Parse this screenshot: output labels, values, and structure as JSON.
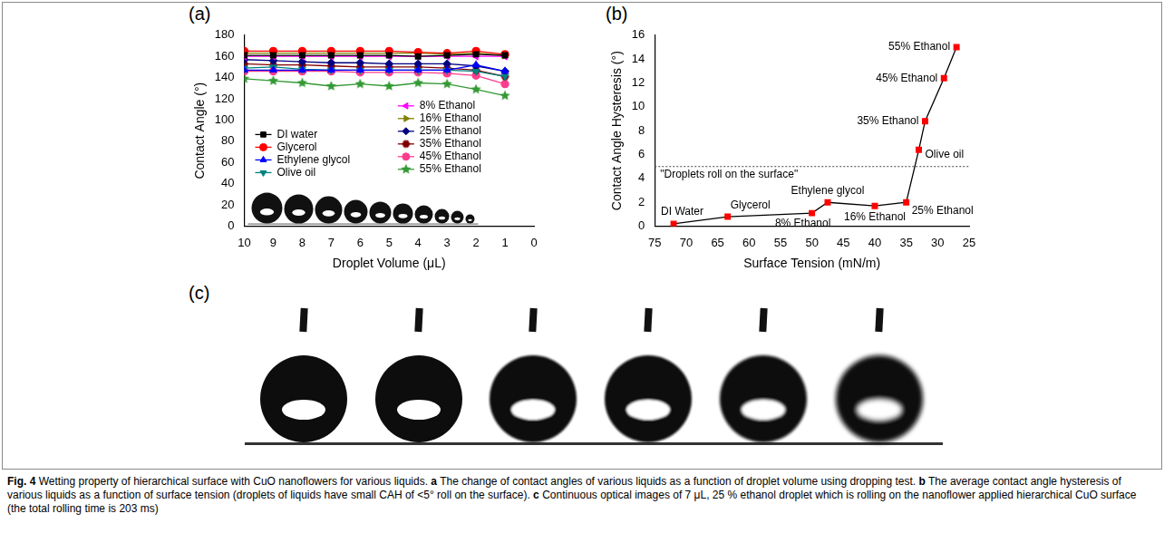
{
  "chart_data": [
    {
      "panel": "(a)",
      "type": "line",
      "x_label": "Droplet Volume (μL)",
      "y_label": "Contact Angle (°)",
      "x": [
        10,
        9,
        8,
        7,
        6,
        5,
        4,
        3,
        2,
        1
      ],
      "xlim": [
        10,
        0
      ],
      "xticks": [
        10,
        9,
        8,
        7,
        6,
        5,
        4,
        3,
        2,
        1,
        0
      ],
      "ylim": [
        0,
        180
      ],
      "yticks": [
        0,
        20,
        40,
        60,
        80,
        100,
        120,
        140,
        160,
        180
      ],
      "grid": false,
      "legend": "center",
      "series": [
        {
          "name": "DI water",
          "color": "#000000",
          "marker": "square",
          "values": [
            161,
            161,
            161,
            161,
            161,
            161,
            160,
            161,
            162,
            161
          ]
        },
        {
          "name": "Glycerol",
          "color": "#ff0000",
          "marker": "circle",
          "values": [
            165,
            165,
            165,
            165,
            165,
            165,
            164,
            163,
            165,
            162
          ]
        },
        {
          "name": "Ethylene glycol",
          "color": "#0000ff",
          "marker": "triangle",
          "values": [
            147,
            147,
            147,
            147,
            147,
            147,
            147,
            147,
            152,
            146
          ]
        },
        {
          "name": "Olive oil",
          "color": "#008080",
          "marker": "triangle_down",
          "values": [
            149,
            150,
            148,
            147,
            147,
            147,
            147,
            147,
            146,
            141
          ]
        },
        {
          "name": "8% Ethanol",
          "color": "#ff00ff",
          "marker": "triangle_left",
          "values": [
            160,
            160,
            160,
            160,
            160,
            160,
            160,
            160,
            160,
            160
          ]
        },
        {
          "name": "16% Ethanol",
          "color": "#808000",
          "marker": "triangle_right",
          "values": [
            163,
            163,
            163,
            163,
            163,
            163,
            163,
            162,
            163,
            161
          ]
        },
        {
          "name": "25% Ethanol",
          "color": "#000080",
          "marker": "diamond",
          "values": [
            157,
            156,
            155,
            154,
            154,
            153,
            153,
            153,
            151,
            146
          ]
        },
        {
          "name": "35% Ethanol",
          "color": "#800000",
          "marker": "hexagon",
          "values": [
            153,
            152,
            152,
            151,
            150,
            150,
            150,
            149,
            147,
            141
          ]
        },
        {
          "name": "45% Ethanol",
          "color": "#ff3c8c",
          "marker": "circle",
          "values": [
            146,
            146,
            146,
            146,
            145,
            145,
            145,
            144,
            142,
            134
          ]
        },
        {
          "name": "55% Ethanol",
          "color": "#339933",
          "marker": "star",
          "values": [
            139,
            137,
            135,
            132,
            134,
            132,
            135,
            134,
            129,
            123
          ]
        }
      ]
    },
    {
      "panel": "(b)",
      "type": "line",
      "x_label": "Surface Tension (mN/m)",
      "y_label": "Contact Angle Hysteresis (°)",
      "x": [
        72,
        63.4,
        50,
        47.5,
        40,
        35,
        33,
        32,
        29,
        27
      ],
      "xlim": [
        75,
        25
      ],
      "xticks": [
        75,
        70,
        65,
        60,
        55,
        50,
        45,
        40,
        35,
        30,
        25
      ],
      "ylim": [
        0,
        16
      ],
      "yticks": [
        0,
        2,
        4,
        6,
        8,
        10,
        12,
        14,
        16
      ],
      "grid": false,
      "series": [
        {
          "color": "#ff0000",
          "marker": "square",
          "line_style": "solid",
          "values": [
            0.2,
            0.8,
            1.1,
            2.0,
            1.7,
            2.0,
            6.4,
            8.8,
            12.4,
            15.0
          ]
        }
      ],
      "point_labels": [
        "DI Water",
        "Glycerol",
        "8% Ethanol",
        "Ethylene glycol",
        "16% Ethanol",
        "25% Ethanol",
        "Olive oil",
        "35% Ethanol",
        "45% Ethanol",
        "55% Ethanol"
      ],
      "reference_line": {
        "value": 5,
        "label": "\"Droplets roll on the surface\"",
        "line_style": "dotted"
      }
    }
  ],
  "photos": {
    "panel": "(c)"
  },
  "caption": {
    "label": "Fig. 4",
    "text": "Wetting property of hierarchical surface with CuO nanoflowers for various liquids.",
    "parts": [
      {
        "letter": "a",
        "text": "The change of contact angles of various liquids as a function of droplet volume using dropping test."
      },
      {
        "letter": "b",
        "text": "The average contact angle hysteresis of various liquids as a function of surface tension (droplets of liquids have small CAH of <5° roll on the surface)."
      },
      {
        "letter": "c",
        "text": "Continuous optical images of 7 μL, 25 % ethanol droplet which is rolling on the nanoflower applied hierarchical CuO surface (the total rolling time is 203 ms)"
      }
    ]
  }
}
